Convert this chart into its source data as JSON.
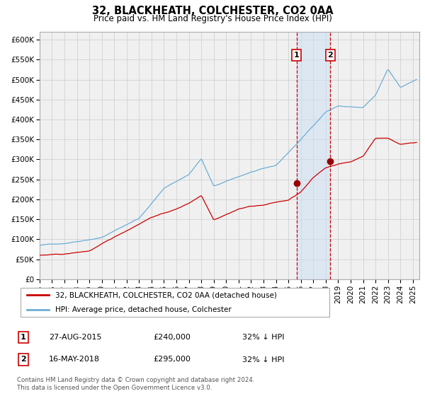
{
  "title": "32, BLACKHEATH, COLCHESTER, CO2 0AA",
  "subtitle": "Price paid vs. HM Land Registry's House Price Index (HPI)",
  "ylim": [
    0,
    620000
  ],
  "xlim_start": 1995.0,
  "xlim_end": 2025.5,
  "yticks": [
    0,
    50000,
    100000,
    150000,
    200000,
    250000,
    300000,
    350000,
    400000,
    450000,
    500000,
    550000,
    600000
  ],
  "ytick_labels": [
    "£0",
    "£50K",
    "£100K",
    "£150K",
    "£200K",
    "£250K",
    "£300K",
    "£350K",
    "£400K",
    "£450K",
    "£500K",
    "£550K",
    "£600K"
  ],
  "xticks": [
    1995,
    1996,
    1997,
    1998,
    1999,
    2000,
    2001,
    2002,
    2003,
    2004,
    2005,
    2006,
    2007,
    2008,
    2009,
    2010,
    2011,
    2012,
    2013,
    2014,
    2015,
    2016,
    2017,
    2018,
    2019,
    2020,
    2021,
    2022,
    2023,
    2024,
    2025
  ],
  "hpi_color": "#6baed6",
  "price_color": "#cc0000",
  "marker_color": "#990000",
  "bg_color": "#ffffff",
  "plot_bg_color": "#f0f0f0",
  "grid_color": "#cccccc",
  "shade_color": "#cce0f5",
  "vline_color": "#cc0000",
  "marker1_x": 2015.65,
  "marker1_y": 240000,
  "marker2_x": 2018.37,
  "marker2_y": 295000,
  "vline1_x": 2015.65,
  "vline2_x": 2018.37,
  "legend_line1": "32, BLACKHEATH, COLCHESTER, CO2 0AA (detached house)",
  "legend_line2": "HPI: Average price, detached house, Colchester",
  "table_row1": [
    "1",
    "27-AUG-2015",
    "£240,000",
    "32% ↓ HPI"
  ],
  "table_row2": [
    "2",
    "16-MAY-2018",
    "£295,000",
    "32% ↓ HPI"
  ],
  "footnote1": "Contains HM Land Registry data © Crown copyright and database right 2024.",
  "footnote2": "This data is licensed under the Open Government Licence v3.0."
}
